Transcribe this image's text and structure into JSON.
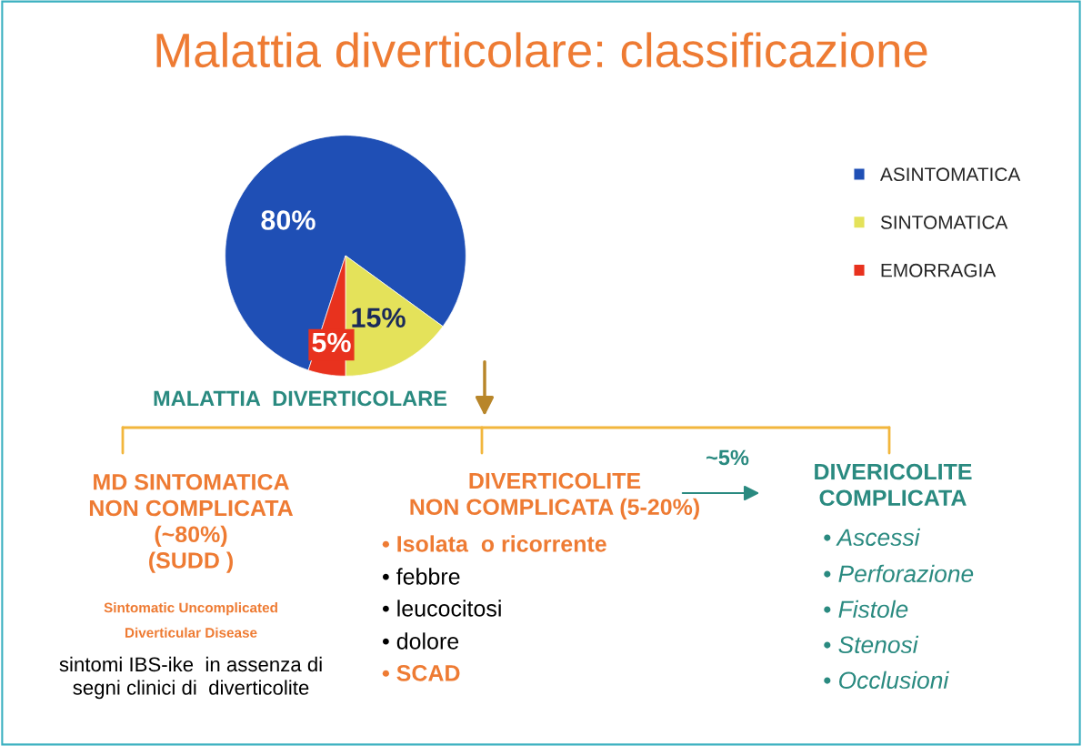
{
  "chart_data": {
    "type": "pie",
    "title": "Malattia diverticolare: classificazione",
    "categories": [
      "ASINTOMATICA",
      "SINTOMATICA",
      "EMORRAGIA"
    ],
    "values": [
      80,
      15,
      5
    ],
    "colors": [
      "#1f4fb5",
      "#e4e25a",
      "#e8321e"
    ],
    "value_labels": [
      "80%",
      "15%",
      "5%"
    ],
    "legend": "right",
    "annotations": [
      "MALATTIA  DIVERTICOLARE",
      "MD SINTOMATICA\nNON COMPLICATA\n(~80%)\n(SUDD )",
      "Sintomatic Uncomplicated\nDiverticular Disease",
      "sintomi IBS-ike  in assenza di\nsegni clinici di  diverticolite",
      "DIVERTICOLITE\nNON COMPLICATA (5-20%)",
      "• Isolata  o ricorrente",
      "• febbre",
      "• leucocitosi",
      "• dolore",
      "• SCAD",
      "~5%",
      "DIVERICOLITE\nCOMPLICATA",
      "• Ascessi",
      "• Perforazione",
      "• Fistole",
      "• Stenosi",
      "• Occlusioni"
    ]
  }
}
